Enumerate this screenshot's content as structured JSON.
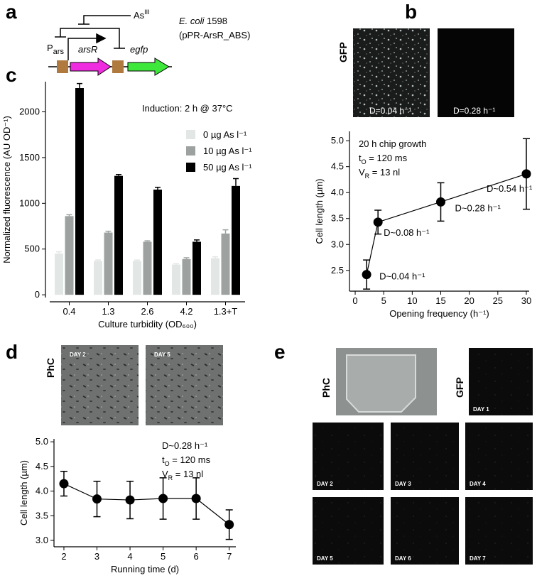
{
  "panel_labels": [
    "a",
    "b",
    "c",
    "d",
    "e"
  ],
  "diagram": {
    "inducer": {
      "text": "As",
      "sup": "III"
    },
    "promoter": {
      "text": "P",
      "sub": "ars"
    },
    "gene1": "arsR",
    "gene2": "egfp",
    "strain": "E. coli",
    "strain_number": "1598",
    "plasmid": "(pPR-ArsR_ABS)"
  },
  "images": {
    "b": {
      "channel": "GFP",
      "labels": [
        "D=0.04 h⁻¹",
        "D=0.28 h⁻¹"
      ]
    },
    "d": {
      "channel": "PhC",
      "labels": [
        "DAY 2",
        "DAY 5"
      ]
    },
    "e": {
      "channels": [
        "PhC",
        "GFP"
      ],
      "labels": [
        "DAY 1",
        "DAY 2",
        "DAY 3",
        "DAY 4",
        "DAY 5",
        "DAY 6",
        "DAY 7"
      ]
    }
  },
  "chart_data": [
    {
      "type": "bar",
      "annotation": "Induction: 2 h @ 37°C",
      "xlabel": "Culture turbidity (OD₆₀₀)",
      "ylabel": "Normalized fluorescence (AU OD⁻¹)",
      "categories": [
        "0.4",
        "1.3",
        "2.6",
        "4.2",
        "1.3+T"
      ],
      "series": [
        {
          "name": "0 µg As l⁻¹",
          "color": "#e2e6e4",
          "values": [
            450,
            370,
            370,
            330,
            400
          ],
          "errors": [
            20,
            10,
            10,
            10,
            15
          ]
        },
        {
          "name": "10 µg As l⁻¹",
          "color": "#9da2a1",
          "values": [
            860,
            680,
            580,
            390,
            670
          ],
          "errors": [
            15,
            15,
            10,
            15,
            40
          ]
        },
        {
          "name": "50 µg As l⁻¹",
          "color": "#000000",
          "values": [
            2260,
            1300,
            1150,
            580,
            1190
          ],
          "errors": [
            50,
            15,
            25,
            20,
            80
          ]
        }
      ],
      "ylim": [
        -30,
        2330
      ],
      "yticks": [
        0,
        500,
        1000,
        1500,
        2000
      ],
      "legend": "upper right"
    },
    {
      "type": "line",
      "color": "#000000",
      "xlabel": "Opening frequency (h⁻¹)",
      "ylabel": "Cell length (µm)",
      "annotation": [
        "20 h chip growth",
        {
          "main": "t",
          "sub": "O",
          "rest": " = 120 ms"
        },
        {
          "main": "V",
          "sub": "R",
          "rest": " = 13 nl"
        }
      ],
      "x": [
        2,
        4,
        15,
        30
      ],
      "values": [
        2.42,
        3.43,
        3.82,
        4.36
      ],
      "errors": [
        0.28,
        0.23,
        0.37,
        0.68
      ],
      "point_labels": [
        "D~0.04 h⁻¹",
        "D~0.08 h⁻¹",
        "D~0.28 h⁻¹",
        "D~0.54 h⁻¹"
      ],
      "xlim": [
        -1,
        30.5
      ],
      "xticks": [
        0,
        5,
        10,
        15,
        20,
        25,
        30
      ],
      "ylim": [
        2.1,
        5.18
      ],
      "yticks": [
        {
          "value": 2.5,
          "label": "2.5"
        },
        {
          "value": 3,
          "label": "3.0"
        },
        {
          "value": 3.5,
          "label": "3.5"
        },
        {
          "value": 4,
          "label": "4.0"
        },
        {
          "value": 4.5,
          "label": "4.5"
        },
        {
          "value": 5,
          "label": "5.0"
        }
      ]
    },
    {
      "type": "line",
      "color": "#000000",
      "xlabel": "Running time (d)",
      "ylabel": "Cell length (µm)",
      "annotation": [
        "D~0.28 h⁻¹",
        {
          "main": "t",
          "sub": "O",
          "rest": " = 120 ms"
        },
        {
          "main": "V",
          "sub": "R",
          "rest": " = 13 nl"
        }
      ],
      "x": [
        2,
        3,
        4,
        5,
        6,
        7
      ],
      "values": [
        4.15,
        3.84,
        3.82,
        3.85,
        3.85,
        3.32
      ],
      "errors": [
        0.25,
        0.36,
        0.38,
        0.42,
        0.42,
        0.3
      ],
      "xlim": [
        1.7,
        7.2
      ],
      "xticks": [
        2,
        3,
        4,
        5,
        6,
        7
      ],
      "ylim": [
        2.87,
        5.06
      ],
      "yticks": [
        {
          "value": 3,
          "label": "3.0"
        },
        {
          "value": 3.5,
          "label": "3.5"
        },
        {
          "value": 4,
          "label": "4.0"
        },
        {
          "value": 4.5,
          "label": "4.5"
        },
        {
          "value": 5,
          "label": "5.0"
        }
      ]
    }
  ]
}
